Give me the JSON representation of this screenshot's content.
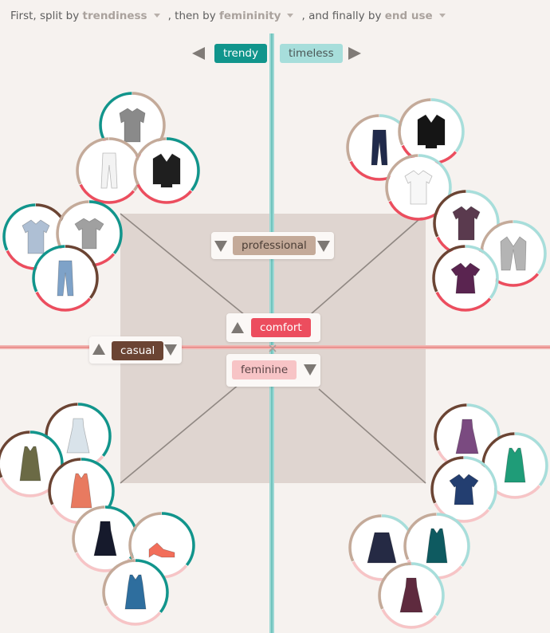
{
  "header": {
    "prefix": "First, split by",
    "dim1": "trendiness",
    "sep1": ", then by",
    "dim2": "femininity",
    "sep2": ", and finally by",
    "dim3": "end use"
  },
  "axis": {
    "top_left": "trendy",
    "top_right": "timeless",
    "upper_mid": "professional",
    "center": "comfort",
    "center_below": "feminine",
    "left_mid": "casual"
  },
  "colors": {
    "trendy": "#11958c",
    "timeless": "#a7dedb",
    "professional": "#c4aa99",
    "comfort": "#ec4d5e",
    "feminine": "#f7c4c6",
    "casual": "#6b4433",
    "ring_brown": "#6b4433",
    "ring_tan": "#c4aa99",
    "ring_red": "#ec4d5e",
    "ring_pink": "#f7c4c6",
    "ring_teal": "#11958c",
    "ring_lightteal": "#a7dedb"
  },
  "items": [
    {
      "icon": "sweater-icon",
      "fill": "#8a8a8a",
      "rings": [
        "ring_tan",
        "ring_red",
        "ring_teal"
      ]
    },
    {
      "icon": "pants-icon",
      "fill": "#f3f3f3",
      "rings": [
        "ring_tan",
        "ring_red",
        "ring_tan"
      ]
    },
    {
      "icon": "jacket-icon",
      "fill": "#1f1f1f",
      "rings": [
        "ring_teal",
        "ring_red",
        "ring_tan"
      ]
    },
    {
      "icon": "shirt-icon",
      "fill": "#aebfd4",
      "rings": [
        "ring_brown",
        "ring_red",
        "ring_teal"
      ]
    },
    {
      "icon": "tshirt-icon",
      "fill": "#a0a0a0",
      "rings": [
        "ring_teal",
        "ring_red",
        "ring_tan"
      ]
    },
    {
      "icon": "jeans-icon",
      "fill": "#7ea2c8",
      "rings": [
        "ring_brown",
        "ring_red",
        "ring_teal"
      ]
    },
    {
      "icon": "pants-icon",
      "fill": "#202a4a",
      "rings": [
        "ring_lightteal",
        "ring_red",
        "ring_tan"
      ]
    },
    {
      "icon": "jacket-icon",
      "fill": "#151515",
      "rings": [
        "ring_lightteal",
        "ring_red",
        "ring_tan"
      ]
    },
    {
      "icon": "shirt-icon",
      "fill": "#f7f7f7",
      "rings": [
        "ring_lightteal",
        "ring_red",
        "ring_tan"
      ]
    },
    {
      "icon": "shirt-icon",
      "fill": "#5a3a4e",
      "rings": [
        "ring_lightteal",
        "ring_red",
        "ring_brown"
      ]
    },
    {
      "icon": "cardigan-icon",
      "fill": "#b4b4b4",
      "rings": [
        "ring_lightteal",
        "ring_red",
        "ring_tan"
      ]
    },
    {
      "icon": "blouse-icon",
      "fill": "#5a2450",
      "rings": [
        "ring_lightteal",
        "ring_red",
        "ring_brown"
      ]
    },
    {
      "icon": "dress-icon",
      "fill": "#d9e3ea",
      "rings": [
        "ring_teal",
        "ring_pink",
        "ring_brown"
      ]
    },
    {
      "icon": "tank-icon",
      "fill": "#6b6a45",
      "rings": [
        "ring_teal",
        "ring_pink",
        "ring_brown"
      ]
    },
    {
      "icon": "tank-icon",
      "fill": "#e87a60",
      "rings": [
        "ring_teal",
        "ring_pink",
        "ring_brown"
      ]
    },
    {
      "icon": "dress-icon",
      "fill": "#161a2c",
      "rings": [
        "ring_teal",
        "ring_pink",
        "ring_tan"
      ]
    },
    {
      "icon": "shoes-icon",
      "fill": "#f26e5a",
      "rings": [
        "ring_teal",
        "ring_pink",
        "ring_tan"
      ]
    },
    {
      "icon": "tank-icon",
      "fill": "#2e6e9e",
      "rings": [
        "ring_teal",
        "ring_pink",
        "ring_tan"
      ]
    },
    {
      "icon": "dress-icon",
      "fill": "#7a4a80",
      "rings": [
        "ring_lightteal",
        "ring_pink",
        "ring_brown"
      ]
    },
    {
      "icon": "tank-icon",
      "fill": "#1f9c78",
      "rings": [
        "ring_lightteal",
        "ring_pink",
        "ring_brown"
      ]
    },
    {
      "icon": "blouse-icon",
      "fill": "#233e70",
      "rings": [
        "ring_lightteal",
        "ring_pink",
        "ring_brown"
      ]
    },
    {
      "icon": "skirt-icon",
      "fill": "#252a44",
      "rings": [
        "ring_lightteal",
        "ring_pink",
        "ring_tan"
      ]
    },
    {
      "icon": "tank-icon",
      "fill": "#0e5a60",
      "rings": [
        "ring_lightteal",
        "ring_pink",
        "ring_tan"
      ]
    },
    {
      "icon": "dress-icon",
      "fill": "#5e2a3e",
      "rings": [
        "ring_lightteal",
        "ring_pink",
        "ring_tan"
      ]
    }
  ]
}
